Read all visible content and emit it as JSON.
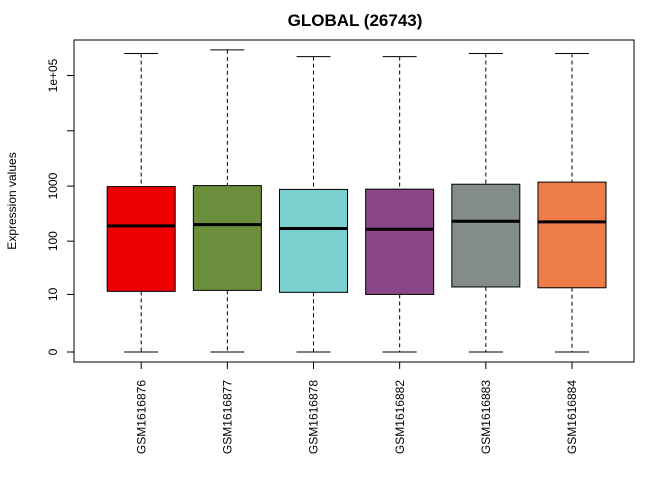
{
  "chart_data": {
    "type": "boxplot",
    "title": "GLOBAL (26743)",
    "ylabel": "Expression values",
    "xlabel": "",
    "y_scale": "log-like",
    "y_ticks": [
      {
        "label": "0",
        "value": 0
      },
      {
        "label": "10",
        "value": 10
      },
      {
        "label": "100",
        "value": 100
      },
      {
        "label": "1000",
        "value": 1000
      },
      {
        "label": "1e+05",
        "value": 100000
      }
    ],
    "y_minor_ticks": [
      10000
    ],
    "ylim": [
      0,
      300000
    ],
    "categories": [
      "GSM1616876",
      "GSM1616877",
      "GSM1616878",
      "GSM1616882",
      "GSM1616883",
      "GSM1616884"
    ],
    "colors": [
      "#EE0000",
      "#6B8E3C",
      "#7ACFCF",
      "#8B4589",
      "#838B8B",
      "#EE7C48"
    ],
    "boxes": [
      {
        "name": "GSM1616876",
        "min": 0,
        "q1": 11.5,
        "median": 190,
        "q3": 980,
        "max": 250000
      },
      {
        "name": "GSM1616877",
        "min": 0,
        "q1": 12,
        "median": 200,
        "q3": 1020,
        "max": 290000
      },
      {
        "name": "GSM1616878",
        "min": 0,
        "q1": 11,
        "median": 170,
        "q3": 870,
        "max": 220000
      },
      {
        "name": "GSM1616882",
        "min": 0,
        "q1": 10,
        "median": 165,
        "q3": 880,
        "max": 220000
      },
      {
        "name": "GSM1616883",
        "min": 0,
        "q1": 14,
        "median": 230,
        "q3": 1080,
        "max": 250000
      },
      {
        "name": "GSM1616884",
        "min": 0,
        "q1": 13.5,
        "median": 225,
        "q3": 1180,
        "max": 250000
      }
    ]
  }
}
